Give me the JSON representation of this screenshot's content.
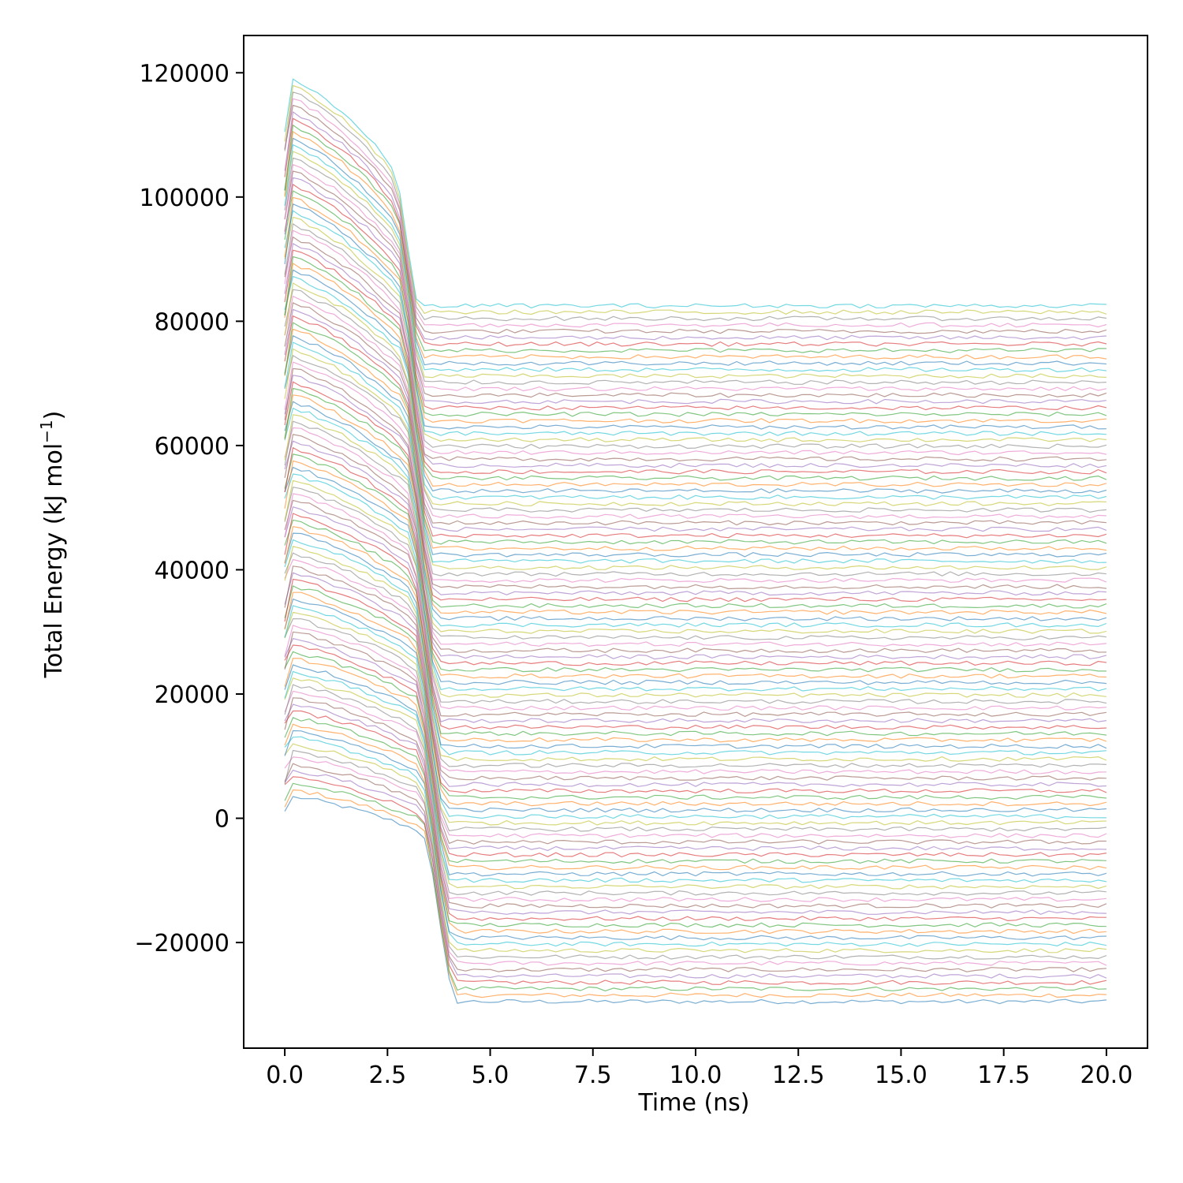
{
  "chart_data": {
    "type": "line",
    "title": "",
    "xlabel": "Time (ns)",
    "ylabel_main": "Total Energy (kJ mol",
    "ylabel_sup": "−1",
    "ylabel_close": ")",
    "xlim": [
      -1.0,
      21.0
    ],
    "ylim": [
      -37000,
      126000
    ],
    "grid": false,
    "legend": "none",
    "x_ticks": [
      {
        "value": 0.0,
        "label": "0.0"
      },
      {
        "value": 2.5,
        "label": "2.5"
      },
      {
        "value": 5.0,
        "label": "5.0"
      },
      {
        "value": 7.5,
        "label": "7.5"
      },
      {
        "value": 10.0,
        "label": "10.0"
      },
      {
        "value": 12.5,
        "label": "12.5"
      },
      {
        "value": 15.0,
        "label": "15.0"
      },
      {
        "value": 17.5,
        "label": "17.5"
      },
      {
        "value": 20.0,
        "label": "20.0"
      }
    ],
    "y_ticks": [
      {
        "value": -20000,
        "label": "−20000"
      },
      {
        "value": 0,
        "label": "0"
      },
      {
        "value": 20000,
        "label": "20000"
      },
      {
        "value": 40000,
        "label": "40000"
      },
      {
        "value": 60000,
        "label": "60000"
      },
      {
        "value": 80000,
        "label": "80000"
      },
      {
        "value": 100000,
        "label": "100000"
      },
      {
        "value": 120000,
        "label": "120000"
      }
    ],
    "series_colors": [
      "#1f77b4",
      "#ff7f0e",
      "#2ca02c",
      "#d62728",
      "#9467bd",
      "#8c564b",
      "#e377c2",
      "#7f7f7f",
      "#bcbd22",
      "#17becf"
    ],
    "series_summary": {
      "count": 110,
      "time_start_ns": 0.0,
      "time_end_ns": 20.0,
      "time_step_ns": 0.2,
      "lowest_series": {
        "start_energy": 500,
        "peak_energy": 3500,
        "peak_time_ns": 0.2,
        "plateau_energy": -29500
      },
      "highest_series": {
        "start_energy": 110000,
        "peak_energy": 119000,
        "peak_time_ns": 0.2,
        "plateau_energy": 82500
      },
      "transition_time_ns": [
        2.6,
        4.2
      ],
      "noise_amplitude": 350
    }
  }
}
